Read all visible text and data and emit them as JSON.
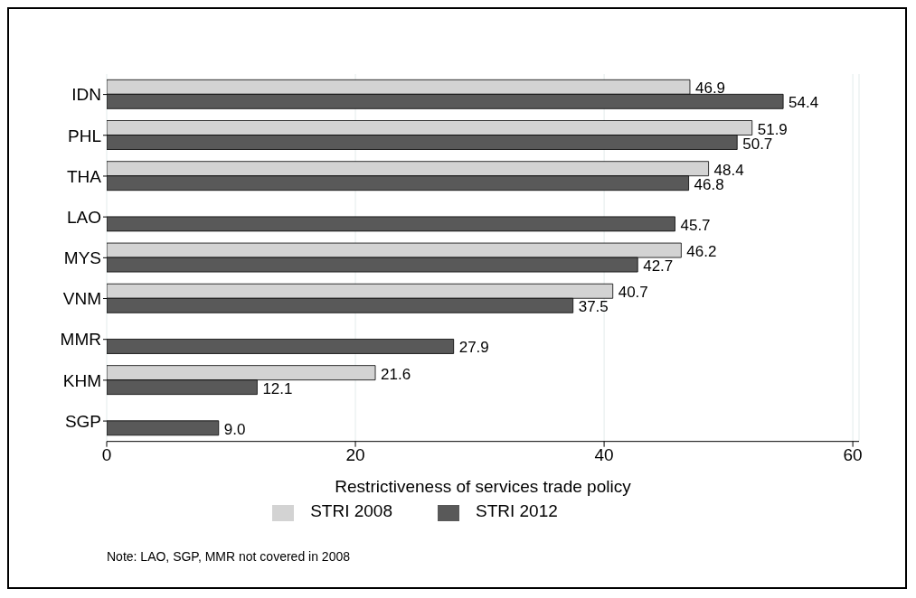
{
  "chart_data": {
    "type": "bar",
    "orientation": "horizontal",
    "xlabel": "Restrictiveness of services trade policy",
    "categories": [
      "IDN",
      "PHL",
      "THA",
      "LAO",
      "MYS",
      "VNM",
      "MMR",
      "KHM",
      "SGP"
    ],
    "series": [
      {
        "name": "STRI 2008",
        "color": "#d3d3d3",
        "values": [
          46.9,
          51.9,
          48.4,
          null,
          46.2,
          40.7,
          null,
          21.6,
          null
        ],
        "value_labels": [
          "46.9",
          "51.9",
          "48.4",
          null,
          "46.2",
          "40.7",
          null,
          "21.6",
          null
        ]
      },
      {
        "name": "STRI 2012",
        "color": "#595959",
        "values": [
          54.4,
          50.7,
          46.8,
          45.7,
          42.7,
          37.5,
          27.9,
          12.1,
          9.0
        ],
        "value_labels": [
          "54.4",
          "50.7",
          "46.8",
          "45.7",
          "42.7",
          "37.5",
          "27.9",
          "12.1",
          "9.0"
        ]
      }
    ],
    "xlim": [
      0,
      60.5
    ],
    "xticks": [
      0,
      20,
      40,
      60
    ],
    "grid": "x",
    "legend": "bottom",
    "annotations": [
      "Note: LAO, SGP, MMR not covered in 2008"
    ]
  }
}
